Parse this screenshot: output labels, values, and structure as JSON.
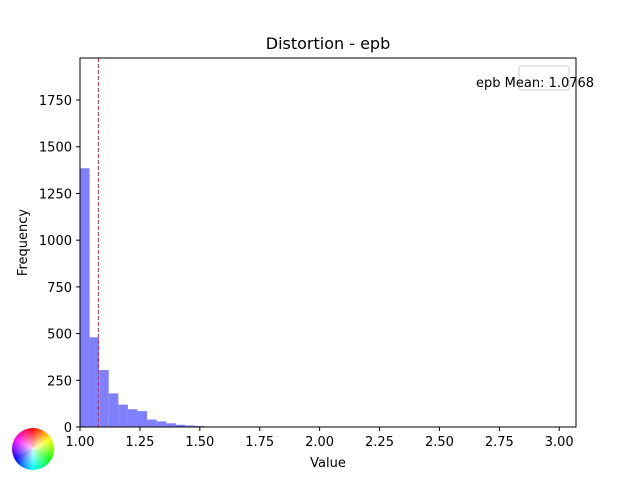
{
  "chart_data": {
    "type": "bar",
    "title": "Distortion - epb",
    "xlabel": "Value",
    "ylabel": "Frequency",
    "xlim": [
      1.0,
      3.07
    ],
    "ylim": [
      0,
      1975
    ],
    "xticks": [
      "1.00",
      "1.25",
      "1.50",
      "1.75",
      "2.00",
      "2.25",
      "2.50",
      "2.75",
      "3.00"
    ],
    "xtick_values": [
      1.0,
      1.25,
      1.5,
      1.75,
      2.0,
      2.25,
      2.5,
      2.75,
      3.0
    ],
    "yticks": [
      "0",
      "250",
      "500",
      "750",
      "1000",
      "1250",
      "1500",
      "1750"
    ],
    "ytick_values": [
      0,
      250,
      500,
      750,
      1000,
      1250,
      1500,
      1750
    ],
    "bin_width": 0.04,
    "bin_starts": [
      1.0,
      1.04,
      1.08,
      1.12,
      1.16,
      1.2,
      1.24,
      1.28,
      1.32,
      1.36,
      1.4,
      1.44,
      1.48
    ],
    "values": [
      1385,
      480,
      305,
      180,
      120,
      95,
      85,
      40,
      30,
      20,
      12,
      8,
      5
    ],
    "bar_color": "#8080ff",
    "mean_line": {
      "value": 1.0768,
      "color": "#d62728",
      "style": "dashed"
    },
    "legend": {
      "label": "epb Mean: 1.0768",
      "placement": "top-right"
    },
    "grid": false
  }
}
